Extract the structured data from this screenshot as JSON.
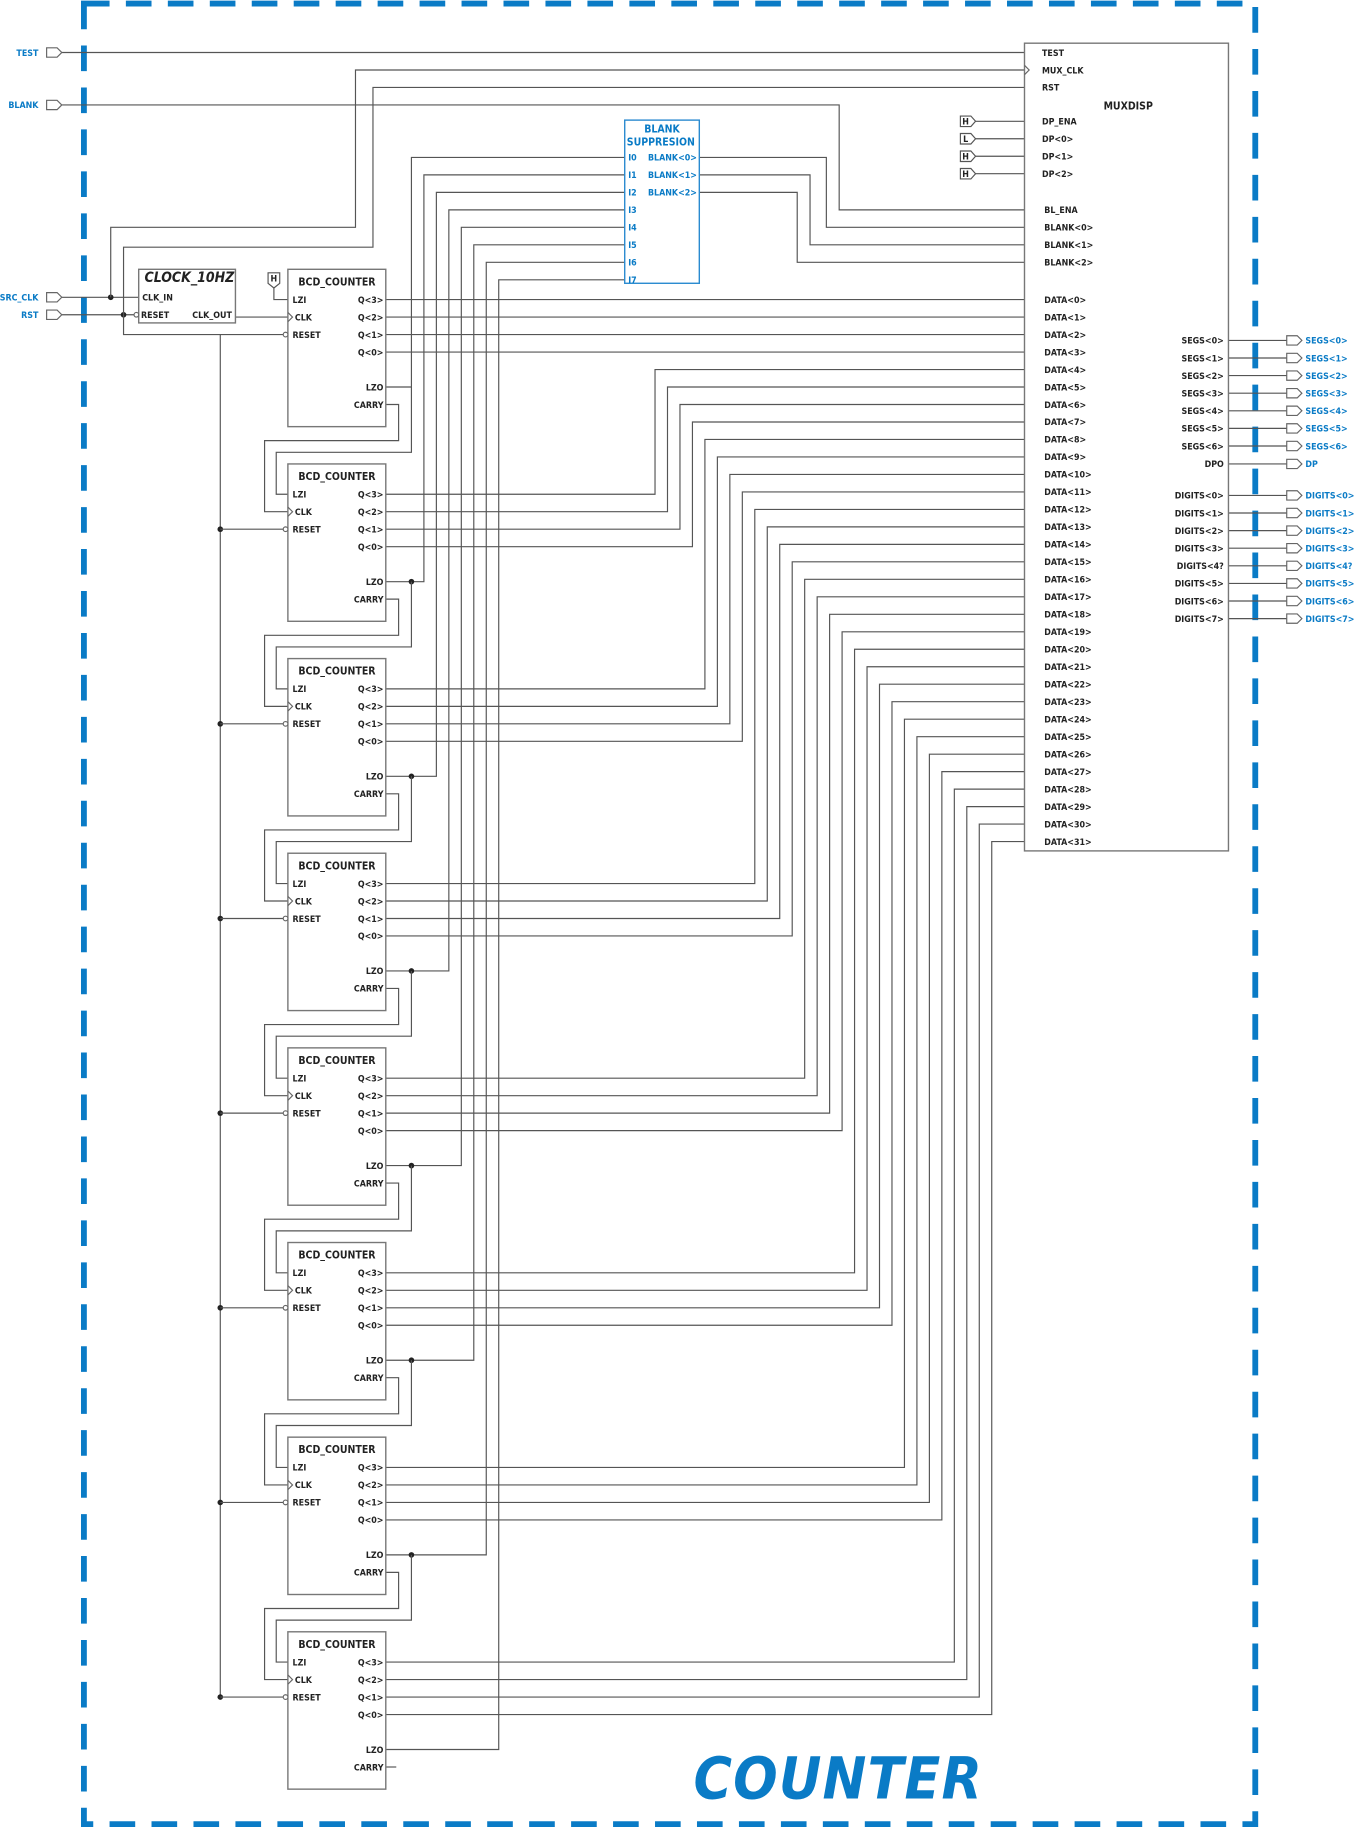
{
  "sheet_title": "COUNTER",
  "colors": {
    "frame": "#0a7bc6",
    "wire": "#555555",
    "label": "#0a7bc6"
  },
  "inputs": [
    {
      "name": "TEST"
    },
    {
      "name": "BLANK"
    },
    {
      "name": "SRC_CLK"
    },
    {
      "name": "RST"
    }
  ],
  "clock": {
    "title": "CLOCK_10HZ",
    "pins": [
      "CLK_IN",
      "RESET",
      "CLK_OUT"
    ]
  },
  "high_const": "H",
  "counter": {
    "title": "BCD_COUNTER",
    "pins_left": [
      "LZI",
      "CLK",
      "RESET"
    ],
    "pins_right": [
      "Q<3>",
      "Q<2>",
      "Q<1>",
      "Q<0>",
      "LZO",
      "CARRY"
    ],
    "count": 8
  },
  "blank_suppression": {
    "title_line1": "BLANK",
    "title_line2": "SUPPRESION",
    "inputs": [
      "I0",
      "I1",
      "I2",
      "I3",
      "I4",
      "I5",
      "I6",
      "I7"
    ],
    "outputs": [
      "BLANK<0>",
      "BLANK<1>",
      "BLANK<2>"
    ]
  },
  "constants": [
    "H",
    "L",
    "H",
    "H"
  ],
  "muxdisp": {
    "title": "MUXDISP",
    "top_pins": [
      "TEST",
      "MUX_CLK",
      "RST"
    ],
    "dp_pins": [
      "DP_ENA",
      "DP<0>",
      "DP<1>",
      "DP<2>"
    ],
    "blank_pins": [
      "BL_ENA",
      "BLANK<0>",
      "BLANK<1>",
      "BLANK<2>"
    ],
    "data_pins": [
      "DATA<0>",
      "DATA<1>",
      "DATA<2>",
      "DATA<3>",
      "DATA<4>",
      "DATA<5>",
      "DATA<6>",
      "DATA<7>",
      "DATA<8>",
      "DATA<9>",
      "DATA<10>",
      "DATA<11>",
      "DATA<12>",
      "DATA<13>",
      "DATA<14>",
      "DATA<15>",
      "DATA<16>",
      "DATA<17>",
      "DATA<18>",
      "DATA<19>",
      "DATA<20>",
      "DATA<21>",
      "DATA<22>",
      "DATA<23>",
      "DATA<24>",
      "DATA<25>",
      "DATA<26>",
      "DATA<27>",
      "DATA<28>",
      "DATA<29>",
      "DATA<30>",
      "DATA<31>"
    ],
    "seg_pins": [
      "SEGS<0>",
      "SEGS<1>",
      "SEGS<2>",
      "SEGS<3>",
      "SEGS<4>",
      "SEGS<5>",
      "SEGS<6>",
      "DPO"
    ],
    "digit_pins": [
      "DIGITS<0>",
      "DIGITS<1>",
      "DIGITS<2>",
      "DIGITS<3>",
      "DIGITS<4?",
      "DIGITS<5>",
      "DIGITS<6>",
      "DIGITS<7>"
    ]
  },
  "outputs": {
    "segs": [
      "SEGS<0>",
      "SEGS<1>",
      "SEGS<2>",
      "SEGS<3>",
      "SEGS<4>",
      "SEGS<5>",
      "SEGS<6>",
      "DP"
    ],
    "digits": [
      "DIGITS<0>",
      "DIGITS<1>",
      "DIGITS<2>",
      "DIGITS<3>",
      "DIGITS<4?",
      "DIGITS<5>",
      "DIGITS<6>",
      "DIGITS<7>"
    ]
  }
}
